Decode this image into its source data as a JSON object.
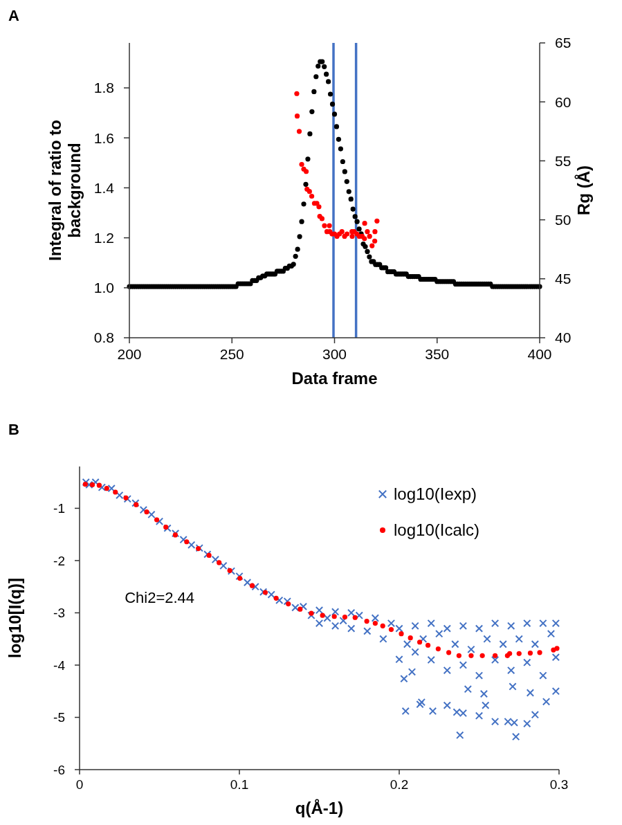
{
  "chart_data": [
    {
      "type": "scatter",
      "title": "A",
      "xlabel": "Data frame",
      "ylabel": "Integral of ratio to background",
      "y2label": "Rg (Å)",
      "marker": "circle",
      "xlim": [
        200,
        400
      ],
      "xticks": [
        200,
        250,
        300,
        350,
        400
      ],
      "ylim": [
        0.8,
        1.98
      ],
      "yticks": [
        0.8,
        {
          "value": 1.0,
          "label": "1.0"
        },
        1.2,
        1.4,
        1.6,
        1.8
      ],
      "y2lim": [
        40,
        65
      ],
      "y2ticks": [
        40,
        45,
        50,
        55,
        60,
        65
      ],
      "ref_lines": [
        {
          "axis": "x",
          "value": 299.5,
          "color": "#4472c4"
        },
        {
          "axis": "x",
          "value": 310.5,
          "color": "#4472c4"
        }
      ],
      "series": [
        {
          "color": "#000000",
          "x": [
            200,
            201,
            202,
            203,
            204,
            205,
            206,
            207,
            208,
            209,
            210,
            211,
            212,
            213,
            214,
            215,
            216,
            217,
            218,
            219,
            220,
            221,
            222,
            223,
            224,
            225,
            226,
            227,
            228,
            229,
            230,
            231,
            232,
            233,
            234,
            235,
            236,
            237,
            238,
            239,
            240,
            241,
            242,
            243,
            244,
            245,
            246,
            247,
            248,
            249,
            250,
            251,
            252,
            253,
            254,
            255,
            256,
            257,
            258,
            259,
            260,
            261,
            262,
            263,
            264,
            265,
            266,
            267,
            268,
            269,
            270,
            271,
            272,
            273,
            274,
            275,
            276,
            277,
            278,
            279,
            280,
            281,
            282,
            283,
            284,
            285,
            286,
            287,
            288,
            289,
            290,
            291,
            292,
            293,
            294,
            295,
            296,
            297,
            298,
            299,
            300,
            301,
            302,
            303,
            304,
            305,
            306,
            307,
            308,
            309,
            310,
            311,
            312,
            313,
            314,
            315,
            316,
            317,
            318,
            319,
            320,
            321,
            322,
            323,
            324,
            325,
            326,
            327,
            328,
            329,
            330,
            331,
            332,
            333,
            334,
            335,
            336,
            337,
            338,
            339,
            340,
            341,
            342,
            343,
            344,
            345,
            346,
            347,
            348,
            349,
            350,
            351,
            352,
            353,
            354,
            355,
            356,
            357,
            358,
            359,
            360,
            361,
            362,
            363,
            364,
            365,
            366,
            367,
            368,
            369,
            370,
            371,
            372,
            373,
            374,
            375,
            376,
            377,
            378,
            379,
            380,
            381,
            382,
            383,
            384,
            385,
            386,
            387,
            388,
            389,
            390,
            391,
            392,
            393,
            394,
            395,
            396,
            397,
            398,
            399,
            400
          ],
          "values": [
            1.005,
            1.005,
            1.005,
            1.005,
            1.005,
            1.005,
            1.005,
            1.005,
            1.005,
            1.005,
            1.005,
            1.005,
            1.005,
            1.005,
            1.005,
            1.005,
            1.005,
            1.005,
            1.005,
            1.005,
            1.005,
            1.005,
            1.005,
            1.005,
            1.005,
            1.005,
            1.005,
            1.005,
            1.005,
            1.005,
            1.005,
            1.005,
            1.005,
            1.005,
            1.005,
            1.005,
            1.005,
            1.005,
            1.005,
            1.005,
            1.005,
            1.005,
            1.005,
            1.005,
            1.005,
            1.005,
            1.005,
            1.005,
            1.005,
            1.005,
            1.005,
            1.005,
            1.005,
            1.016,
            1.016,
            1.016,
            1.016,
            1.016,
            1.016,
            1.016,
            1.029,
            1.029,
            1.029,
            1.04,
            1.04,
            1.047,
            1.047,
            1.055,
            1.055,
            1.055,
            1.055,
            1.055,
            1.066,
            1.066,
            1.066,
            1.066,
            1.078,
            1.078,
            1.087,
            1.087,
            1.094,
            1.126,
            1.154,
            1.205,
            1.265,
            1.335,
            1.414,
            1.515,
            1.616,
            1.705,
            1.785,
            1.845,
            1.887,
            1.905,
            1.905,
            1.885,
            1.855,
            1.825,
            1.775,
            1.735,
            1.695,
            1.645,
            1.594,
            1.556,
            1.505,
            1.465,
            1.425,
            1.385,
            1.355,
            1.315,
            1.285,
            1.265,
            1.235,
            1.216,
            1.175,
            1.165,
            1.145,
            1.124,
            1.105,
            1.105,
            1.093,
            1.093,
            1.093,
            1.08,
            1.08,
            1.08,
            1.064,
            1.064,
            1.064,
            1.064,
            1.055,
            1.055,
            1.055,
            1.055,
            1.055,
            1.055,
            1.045,
            1.045,
            1.045,
            1.045,
            1.045,
            1.045,
            1.034,
            1.034,
            1.034,
            1.034,
            1.034,
            1.034,
            1.034,
            1.034,
            1.025,
            1.025,
            1.025,
            1.025,
            1.025,
            1.025,
            1.025,
            1.025,
            1.025,
            1.015,
            1.015,
            1.015,
            1.015,
            1.015,
            1.015,
            1.015,
            1.015,
            1.015,
            1.015,
            1.015,
            1.015,
            1.015,
            1.015,
            1.015,
            1.015,
            1.015,
            1.015,
            1.005,
            1.005,
            1.005,
            1.005,
            1.005,
            1.005,
            1.005,
            1.005,
            1.005,
            1.005,
            1.005,
            1.005,
            1.005,
            1.005,
            1.005,
            1.005,
            1.005,
            1.005,
            1.005,
            1.005,
            1.005,
            1.005,
            1.005,
            1.005
          ]
        },
        {
          "color": "#ff0000",
          "axis": "y2",
          "x": [
            281.6,
            281.8,
            282.8,
            284.0,
            285.0,
            286.2,
            286.6,
            287.8,
            288.9,
            290.2,
            291.4,
            292.4,
            292.8,
            293.9,
            295.1,
            296.3,
            297.5,
            297.7,
            298.8,
            300.0,
            301.2,
            302.4,
            303.6,
            304.9,
            306.1,
            308.5,
            308.6,
            309.6,
            310.9,
            312.1,
            313.5,
            314.6,
            314.7,
            316.0,
            317.1,
            318.3,
            319.6,
            319.7,
            320.7
          ],
          "values": [
            60.7,
            58.8,
            57.5,
            54.7,
            54.3,
            54.1,
            52.6,
            52.4,
            52.0,
            51.4,
            51.4,
            51.1,
            50.3,
            50.1,
            49.5,
            49.0,
            49.5,
            49.0,
            48.8,
            48.8,
            48.6,
            48.8,
            49.0,
            48.6,
            48.8,
            49.0,
            48.6,
            49.0,
            48.8,
            48.6,
            48.6,
            48.4,
            49.7,
            49.0,
            48.6,
            47.8,
            48.2,
            49.0,
            49.9
          ]
        }
      ]
    },
    {
      "type": "scatter",
      "title": "B",
      "xlabel": "q(Å-1)",
      "ylabel": "log10[I(q)]",
      "legend": "top right",
      "annotations": [
        "Chi2=2.44"
      ],
      "xlim": [
        0,
        0.3
      ],
      "xticks": [
        0,
        0.1,
        0.2,
        0.3
      ],
      "ylim": [
        -6,
        -0.2
      ],
      "yticks": [
        -6,
        -5,
        -4,
        -3,
        -2,
        -1
      ],
      "series": [
        {
          "name": "log10(Iexp)",
          "color": "#4472c4",
          "marker": "cross",
          "x": [
            0.004,
            0.006,
            0.01,
            0.014,
            0.02,
            0.025,
            0.03,
            0.035,
            0.04,
            0.045,
            0.05,
            0.055,
            0.06,
            0.065,
            0.07,
            0.075,
            0.08,
            0.085,
            0.09,
            0.095,
            0.1,
            0.105,
            0.11,
            0.115,
            0.12,
            0.125,
            0.13,
            0.135,
            0.14,
            0.145,
            0.15,
            0.15,
            0.155,
            0.16,
            0.16,
            0.165,
            0.17,
            0.17,
            0.175,
            0.18,
            0.185,
            0.19,
            0.195,
            0.2,
            0.2,
            0.205,
            0.21,
            0.21,
            0.215,
            0.22,
            0.22,
            0.225,
            0.23,
            0.23,
            0.235,
            0.24,
            0.24,
            0.245,
            0.25,
            0.25,
            0.255,
            0.26,
            0.26,
            0.265,
            0.27,
            0.27,
            0.275,
            0.28,
            0.28,
            0.285,
            0.29,
            0.29,
            0.295,
            0.298,
            0.298,
            0.204,
            0.213,
            0.214,
            0.221,
            0.203,
            0.208,
            0.23,
            0.236,
            0.24,
            0.25,
            0.254,
            0.26,
            0.268,
            0.272,
            0.28,
            0.285,
            0.292,
            0.298,
            0.243,
            0.253,
            0.271,
            0.282,
            0.273,
            0.238
          ],
          "values": [
            -0.5,
            -0.55,
            -0.5,
            -0.6,
            -0.62,
            -0.75,
            -0.82,
            -0.9,
            -1.03,
            -1.12,
            -1.25,
            -1.38,
            -1.48,
            -1.6,
            -1.7,
            -1.76,
            -1.88,
            -1.98,
            -2.1,
            -2.2,
            -2.3,
            -2.42,
            -2.5,
            -2.6,
            -2.65,
            -2.76,
            -2.78,
            -2.9,
            -2.88,
            -3.05,
            -2.95,
            -3.2,
            -3.1,
            -2.98,
            -3.25,
            -3.15,
            -3.0,
            -3.3,
            -3.05,
            -3.35,
            -3.1,
            -3.5,
            -3.2,
            -3.3,
            -3.89,
            -3.6,
            -3.25,
            -3.75,
            -3.5,
            -3.2,
            -3.9,
            -3.4,
            -3.3,
            -4.1,
            -3.6,
            -3.25,
            -4.0,
            -3.7,
            -3.3,
            -4.2,
            -3.5,
            -3.2,
            -3.9,
            -3.6,
            -3.25,
            -4.1,
            -3.5,
            -3.2,
            -3.95,
            -3.6,
            -3.2,
            -4.2,
            -3.4,
            -3.2,
            -3.85,
            -4.88,
            -4.75,
            -4.71,
            -4.88,
            -4.26,
            -4.13,
            -4.77,
            -4.9,
            -4.92,
            -4.97,
            -4.77,
            -5.08,
            -5.08,
            -5.1,
            -5.12,
            -4.95,
            -4.7,
            -4.5,
            -4.46,
            -4.55,
            -4.41,
            -4.53,
            -5.37,
            -5.34
          ]
        },
        {
          "name": "log10(Icalc)",
          "color": "#ff0000",
          "marker": "circle",
          "x": [
            0.0036,
            0.008,
            0.0123,
            0.017,
            0.0224,
            0.029,
            0.0354,
            0.042,
            0.0483,
            0.054,
            0.0599,
            0.067,
            0.0743,
            0.081,
            0.0873,
            0.094,
            0.1003,
            0.108,
            0.1162,
            0.123,
            0.1306,
            0.138,
            0.145,
            0.152,
            0.1594,
            0.166,
            0.1724,
            0.1797,
            0.185,
            0.1897,
            0.195,
            0.2013,
            0.207,
            0.2128,
            0.218,
            0.2244,
            0.231,
            0.2374,
            0.245,
            0.252,
            0.26,
            0.2677,
            0.2691,
            0.275,
            0.282,
            0.2879,
            0.2965,
            0.2987
          ],
          "values": [
            -0.54,
            -0.55,
            -0.56,
            -0.62,
            -0.69,
            -0.8,
            -0.93,
            -1.07,
            -1.22,
            -1.36,
            -1.51,
            -1.64,
            -1.77,
            -1.9,
            -2.04,
            -2.19,
            -2.34,
            -2.48,
            -2.61,
            -2.72,
            -2.83,
            -2.93,
            -3.01,
            -3.05,
            -3.07,
            -3.08,
            -3.09,
            -3.16,
            -3.2,
            -3.25,
            -3.32,
            -3.4,
            -3.48,
            -3.56,
            -3.62,
            -3.69,
            -3.76,
            -3.82,
            -3.82,
            -3.82,
            -3.82,
            -3.82,
            -3.78,
            -3.78,
            -3.77,
            -3.76,
            -3.71,
            -3.68
          ]
        }
      ]
    }
  ]
}
